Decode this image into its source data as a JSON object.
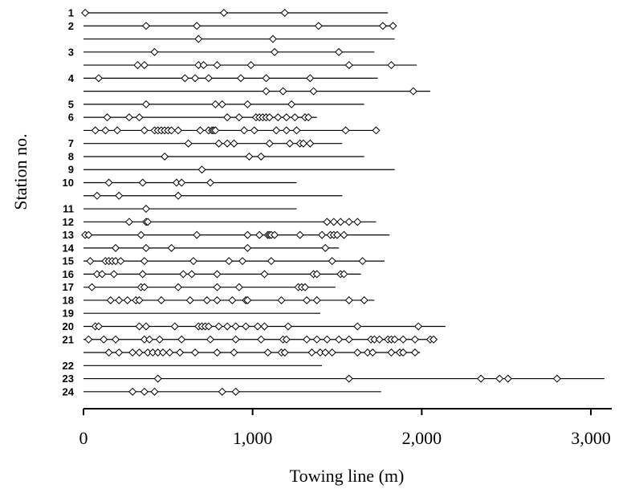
{
  "chart_data": {
    "type": "scatter",
    "xlabel": "Towing line (m)",
    "ylabel": "Station no.",
    "xlim": [
      0,
      3100
    ],
    "xticks": [
      0,
      1000,
      2000,
      3000
    ],
    "xtick_labels": [
      "0",
      "1,000",
      "2,000",
      "3,000"
    ],
    "grid": false,
    "marker": "open-diamond",
    "tows": [
      {
        "station": "1",
        "line_end": 1800,
        "points": [
          10,
          830,
          1190
        ]
      },
      {
        "station": "2",
        "line_end": 1830,
        "points": [
          370,
          670,
          1390,
          1770,
          1830
        ]
      },
      {
        "station": "",
        "line_end": 1840,
        "points": [
          680,
          1120
        ]
      },
      {
        "station": "3",
        "line_end": 1720,
        "points": [
          420,
          1130,
          1510
        ]
      },
      {
        "station": "",
        "line_end": 1970,
        "points": [
          320,
          360,
          680,
          710,
          790,
          990,
          1570,
          1820
        ]
      },
      {
        "station": "4",
        "line_end": 1740,
        "points": [
          90,
          600,
          660,
          740,
          930,
          1080,
          1340
        ]
      },
      {
        "station": "",
        "line_end": 2050,
        "points": [
          1080,
          1180,
          1360,
          1950
        ]
      },
      {
        "station": "5",
        "line_end": 1660,
        "points": [
          370,
          780,
          820,
          970,
          1230
        ]
      },
      {
        "station": "6",
        "line_end": 1380,
        "points": [
          140,
          270,
          330,
          850,
          920,
          1020,
          1040,
          1060,
          1080,
          1100,
          1150,
          1200,
          1250,
          1310,
          1330
        ]
      },
      {
        "station": "",
        "line_end": 1750,
        "points": [
          70,
          130,
          200,
          360,
          420,
          440,
          460,
          480,
          500,
          520,
          560,
          690,
          740,
          760,
          770,
          780,
          950,
          1010,
          1140,
          1200,
          1260,
          1550,
          1730
        ]
      },
      {
        "station": "7",
        "line_end": 1530,
        "points": [
          620,
          800,
          850,
          890,
          1100,
          1220,
          1280,
          1300,
          1340
        ]
      },
      {
        "station": "8",
        "line_end": 1660,
        "points": [
          480,
          980,
          1050
        ]
      },
      {
        "station": "9",
        "line_end": 1840,
        "points": [
          700
        ]
      },
      {
        "station": "10",
        "line_end": 1260,
        "points": [
          150,
          350,
          550,
          580,
          750
        ]
      },
      {
        "station": "",
        "line_end": 1530,
        "points": [
          80,
          210,
          560
        ]
      },
      {
        "station": "11",
        "line_end": 1260,
        "points": [
          370
        ]
      },
      {
        "station": "12",
        "line_end": 1730,
        "points": [
          270,
          370,
          380,
          1440,
          1480,
          1520,
          1570,
          1620
        ]
      },
      {
        "station": "13",
        "line_end": 1810,
        "points": [
          10,
          30,
          340,
          670,
          970,
          1040,
          1090,
          1100,
          1110,
          1130,
          1280,
          1410,
          1460,
          1480,
          1500,
          1540
        ]
      },
      {
        "station": "14",
        "line_end": 1510,
        "points": [
          190,
          370,
          520,
          970,
          1430
        ]
      },
      {
        "station": "15",
        "line_end": 1780,
        "points": [
          40,
          130,
          150,
          170,
          190,
          220,
          360,
          650,
          860,
          940,
          1110,
          1470,
          1650
        ]
      },
      {
        "station": "16",
        "line_end": 1640,
        "points": [
          80,
          110,
          180,
          350,
          590,
          640,
          790,
          1070,
          1360,
          1380,
          1520,
          1540
        ]
      },
      {
        "station": "17",
        "line_end": 1490,
        "points": [
          50,
          340,
          360,
          560,
          790,
          920,
          1270,
          1290,
          1310
        ]
      },
      {
        "station": "18",
        "line_end": 1720,
        "points": [
          160,
          210,
          260,
          310,
          330,
          460,
          630,
          730,
          790,
          880,
          960,
          970,
          1170,
          1320,
          1380,
          1570,
          1660
        ]
      },
      {
        "station": "19",
        "line_end": 1400,
        "points": []
      },
      {
        "station": "20",
        "line_end": 2140,
        "points": [
          70,
          90,
          330,
          370,
          540,
          680,
          700,
          720,
          740,
          800,
          850,
          900,
          960,
          1030,
          1070,
          1210,
          1620,
          1980
        ]
      },
      {
        "station": "21",
        "line_end": 2090,
        "points": [
          30,
          120,
          190,
          360,
          390,
          450,
          580,
          750,
          900,
          1050,
          1180,
          1200,
          1320,
          1380,
          1440,
          1510,
          1570,
          1700,
          1720,
          1750,
          1800,
          1820,
          1840,
          1890,
          1960,
          2050,
          2070
        ]
      },
      {
        "station": "",
        "line_end": 1990,
        "points": [
          150,
          210,
          290,
          330,
          380,
          410,
          440,
          470,
          510,
          570,
          660,
          790,
          890,
          1090,
          1170,
          1190,
          1350,
          1400,
          1430,
          1470,
          1620,
          1680,
          1710,
          1820,
          1870,
          1890,
          1960
        ]
      },
      {
        "station": "22",
        "line_end": 1410,
        "points": []
      },
      {
        "station": "23",
        "line_end": 3080,
        "points": [
          440,
          1570,
          2350,
          2460,
          2510,
          2800
        ]
      },
      {
        "station": "24",
        "line_end": 1760,
        "points": [
          290,
          360,
          420,
          820,
          900
        ]
      }
    ]
  }
}
